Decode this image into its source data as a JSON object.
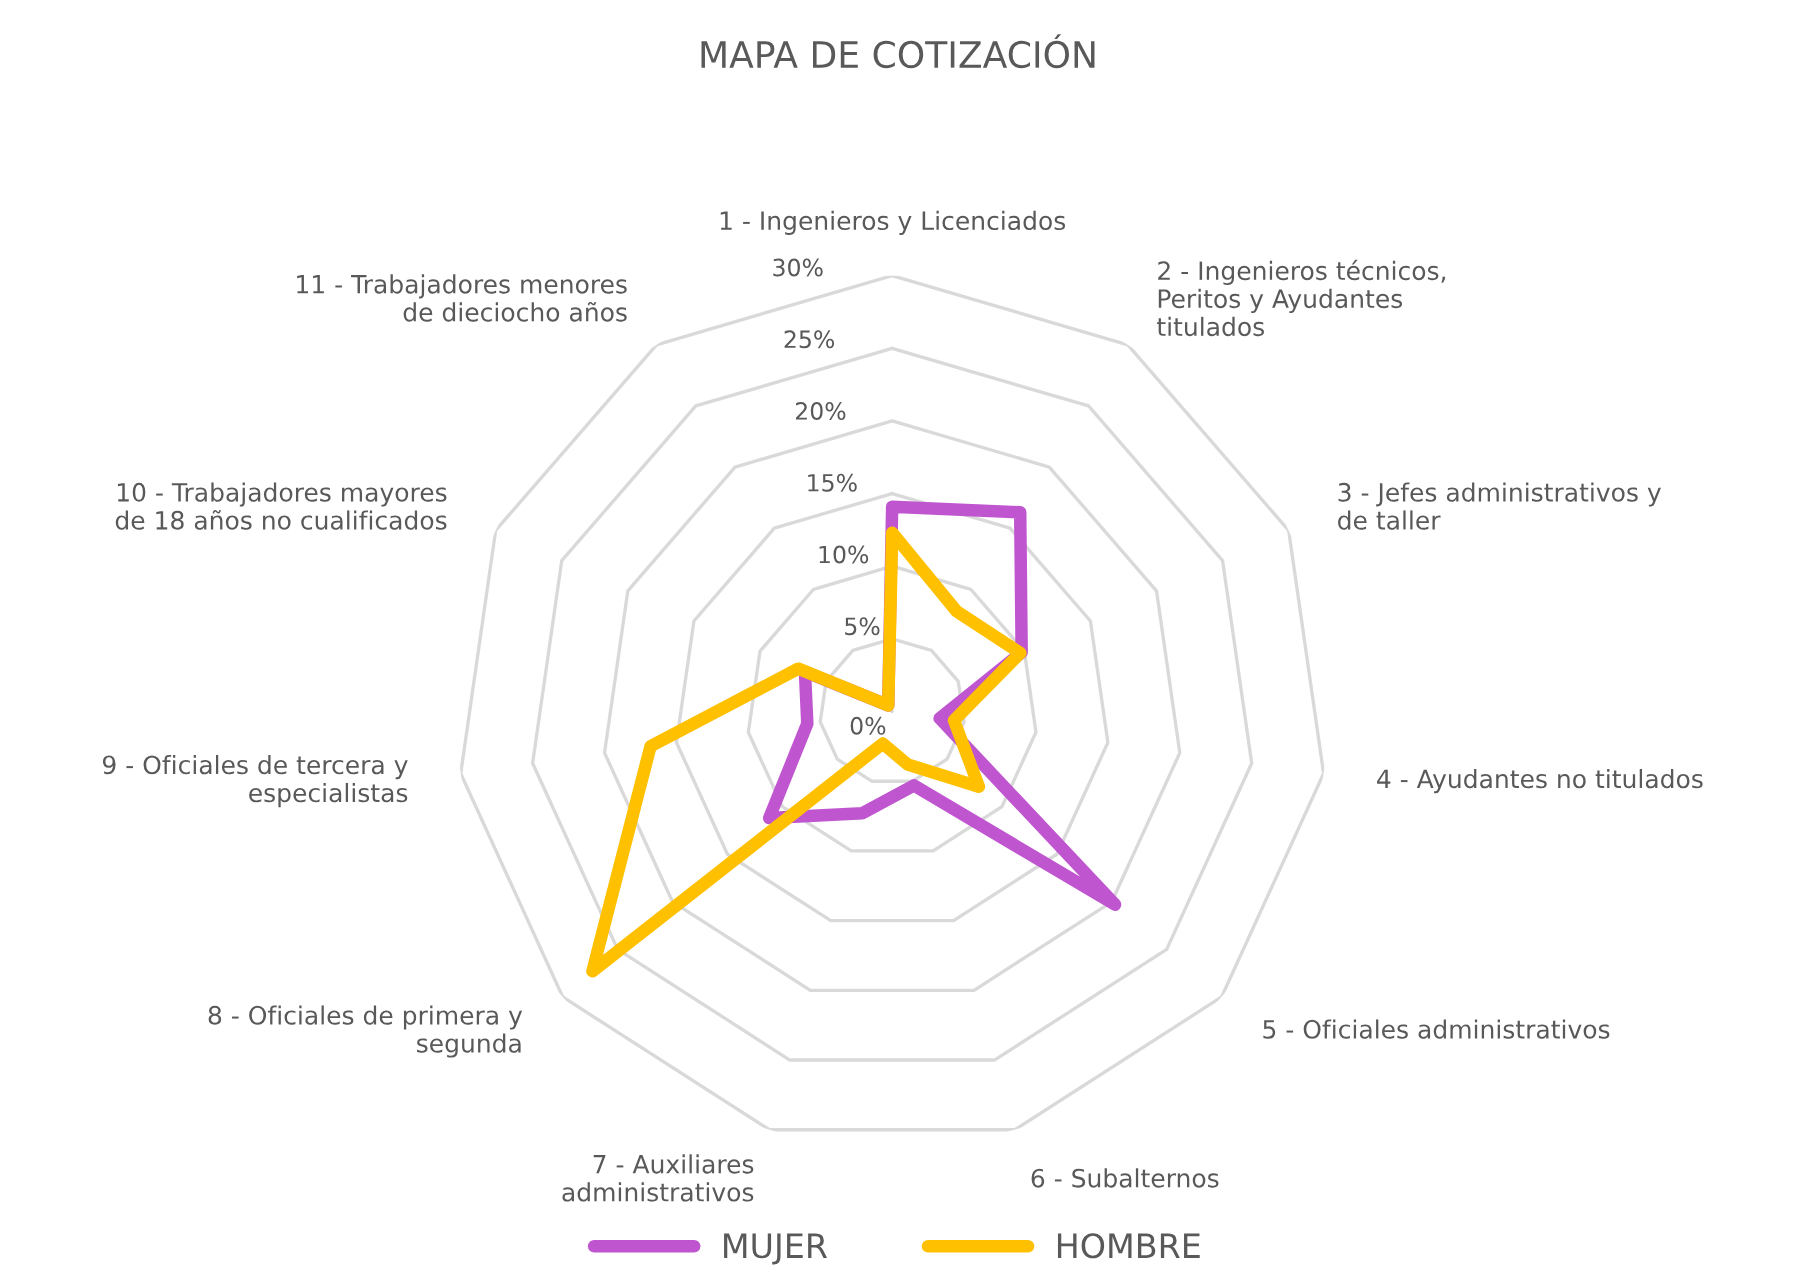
{
  "chart_data": {
    "type": "radar",
    "title": "MAPA DE COTIZACIÓN",
    "categories": [
      "1 - Ingenieros y Licenciados",
      "2 - Ingenieros técnicos,\nPeritos y Ayudantes\ntitulados",
      "3 - Jefes administrativos y\nde taller",
      "4 - Ayudantes no titulados",
      "5 - Oficiales administrativos",
      "6 - Subalternos",
      "7 - Auxiliares\nadministrativos",
      "8 - Oficiales de primera y\nsegunda",
      "9 - Oficiales de tercera y\nespecialistas",
      "10 - Trabajadores mayores\nde 18 años no cualificados",
      "11 - Trabajadores menores\nde dieciocho años"
    ],
    "series": [
      {
        "name": "MUJER",
        "color": "#c055d0",
        "values": [
          14.1,
          16.3,
          9.8,
          3.3,
          20.3,
          5.3,
          7.3,
          11.2,
          5.9,
          6.6,
          0.5
        ]
      },
      {
        "name": "HOMBRE",
        "color": "#ffc000",
        "values": [
          12.3,
          8.2,
          9.7,
          4.3,
          7.9,
          3.8,
          2.3,
          27.3,
          16.8,
          7.1,
          0.5
        ]
      }
    ],
    "ylim": [
      0,
      30
    ],
    "yticks": [
      {
        "value": 0,
        "label": "0%"
      },
      {
        "value": 5,
        "label": "5%"
      },
      {
        "value": 10,
        "label": "10%"
      },
      {
        "value": 15,
        "label": "15%"
      },
      {
        "value": 20,
        "label": "20%"
      },
      {
        "value": 25,
        "label": "25%"
      },
      {
        "value": 30,
        "label": "30%"
      }
    ],
    "grid": true,
    "legend": "bottom",
    "marker": "none",
    "line_style": "solid"
  }
}
